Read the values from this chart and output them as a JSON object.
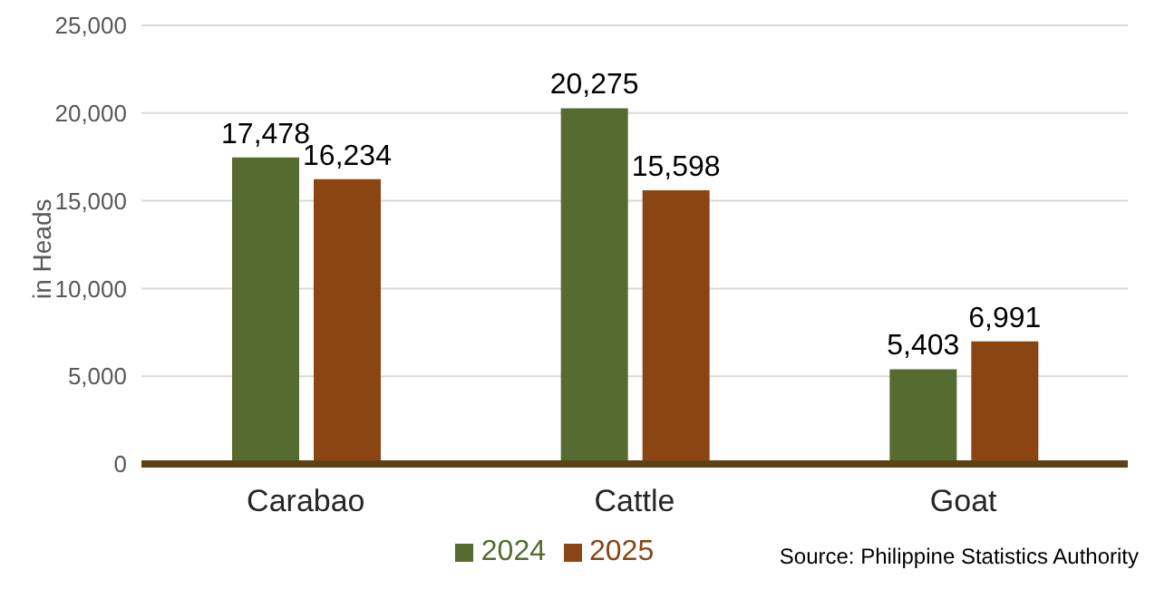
{
  "chart_data": {
    "type": "bar",
    "ylabel": "in Heads",
    "categories": [
      "Carabao",
      "Cattle",
      "Goat"
    ],
    "series": [
      {
        "name": "2024",
        "color": "#556b2f",
        "values": [
          17478,
          20275,
          5403
        ],
        "value_labels": [
          "17,478",
          "20,275",
          "5,403"
        ]
      },
      {
        "name": "2025",
        "color": "#8b4513",
        "values": [
          16234,
          15598,
          6991
        ],
        "value_labels": [
          "16,234",
          "15,598",
          "6,991"
        ]
      }
    ],
    "ylim": [
      0,
      25000
    ],
    "yticks": [
      {
        "value": 0,
        "label": "0"
      },
      {
        "value": 5000,
        "label": "5,000"
      },
      {
        "value": 10000,
        "label": "10,000"
      },
      {
        "value": 15000,
        "label": "15,000"
      },
      {
        "value": 20000,
        "label": "20,000"
      },
      {
        "value": 25000,
        "label": "25,000"
      }
    ],
    "grid": "y",
    "legend": "bottom",
    "annotations": [
      "Source: Philippine Statistics Authority"
    ]
  }
}
